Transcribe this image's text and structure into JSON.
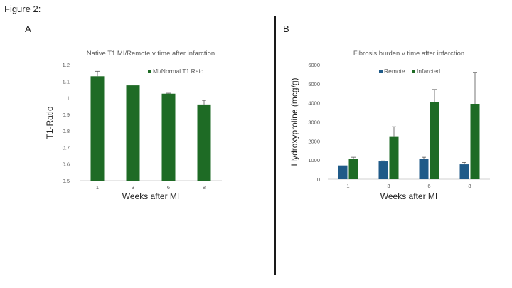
{
  "figure_title": "Figure 2:",
  "panels": [
    "A",
    "B"
  ],
  "colors": {
    "green": "#1e6b25",
    "blue": "#1f5a88",
    "error": "#555555"
  },
  "chart_data": [
    {
      "type": "bar",
      "panel": "A",
      "title": "Native T1 MI/Remote  v time after infarction",
      "xlabel": "Weeks after MI",
      "ylabel": "T1-Ratio",
      "categories": [
        "1",
        "3",
        "6",
        "8"
      ],
      "ylim": [
        0.5,
        1.2
      ],
      "yticks": [
        "0.5",
        "0.6",
        "0.7",
        "0.8",
        "0.9",
        "1",
        "1.1",
        "1.2"
      ],
      "legend_position": "top-right",
      "series": [
        {
          "name": "MI/Normal T1 Raio",
          "color": "#1e6b25",
          "values": [
            1.13,
            1.075,
            1.025,
            0.96
          ],
          "errors": [
            0.03,
            0.003,
            0.003,
            0.025
          ]
        }
      ]
    },
    {
      "type": "bar",
      "panel": "B",
      "title": "Fibrosis burden v time after infarction",
      "xlabel": "Weeks after MI",
      "ylabel": "Hydroxyproline (mcg/g)",
      "categories": [
        "1",
        "3",
        "6",
        "8"
      ],
      "ylim": [
        0,
        6000
      ],
      "yticks": [
        "0",
        "1000",
        "2000",
        "3000",
        "4000",
        "5000",
        "6000"
      ],
      "legend_position": "top",
      "series": [
        {
          "name": "Remote",
          "color": "#1f5a88",
          "values": [
            720,
            930,
            1080,
            780
          ],
          "errors": [
            0,
            30,
            70,
            100
          ]
        },
        {
          "name": "Infarcted",
          "color": "#1e6b25",
          "values": [
            1080,
            2250,
            4050,
            3950
          ],
          "errors": [
            70,
            500,
            650,
            1650
          ]
        }
      ]
    }
  ]
}
